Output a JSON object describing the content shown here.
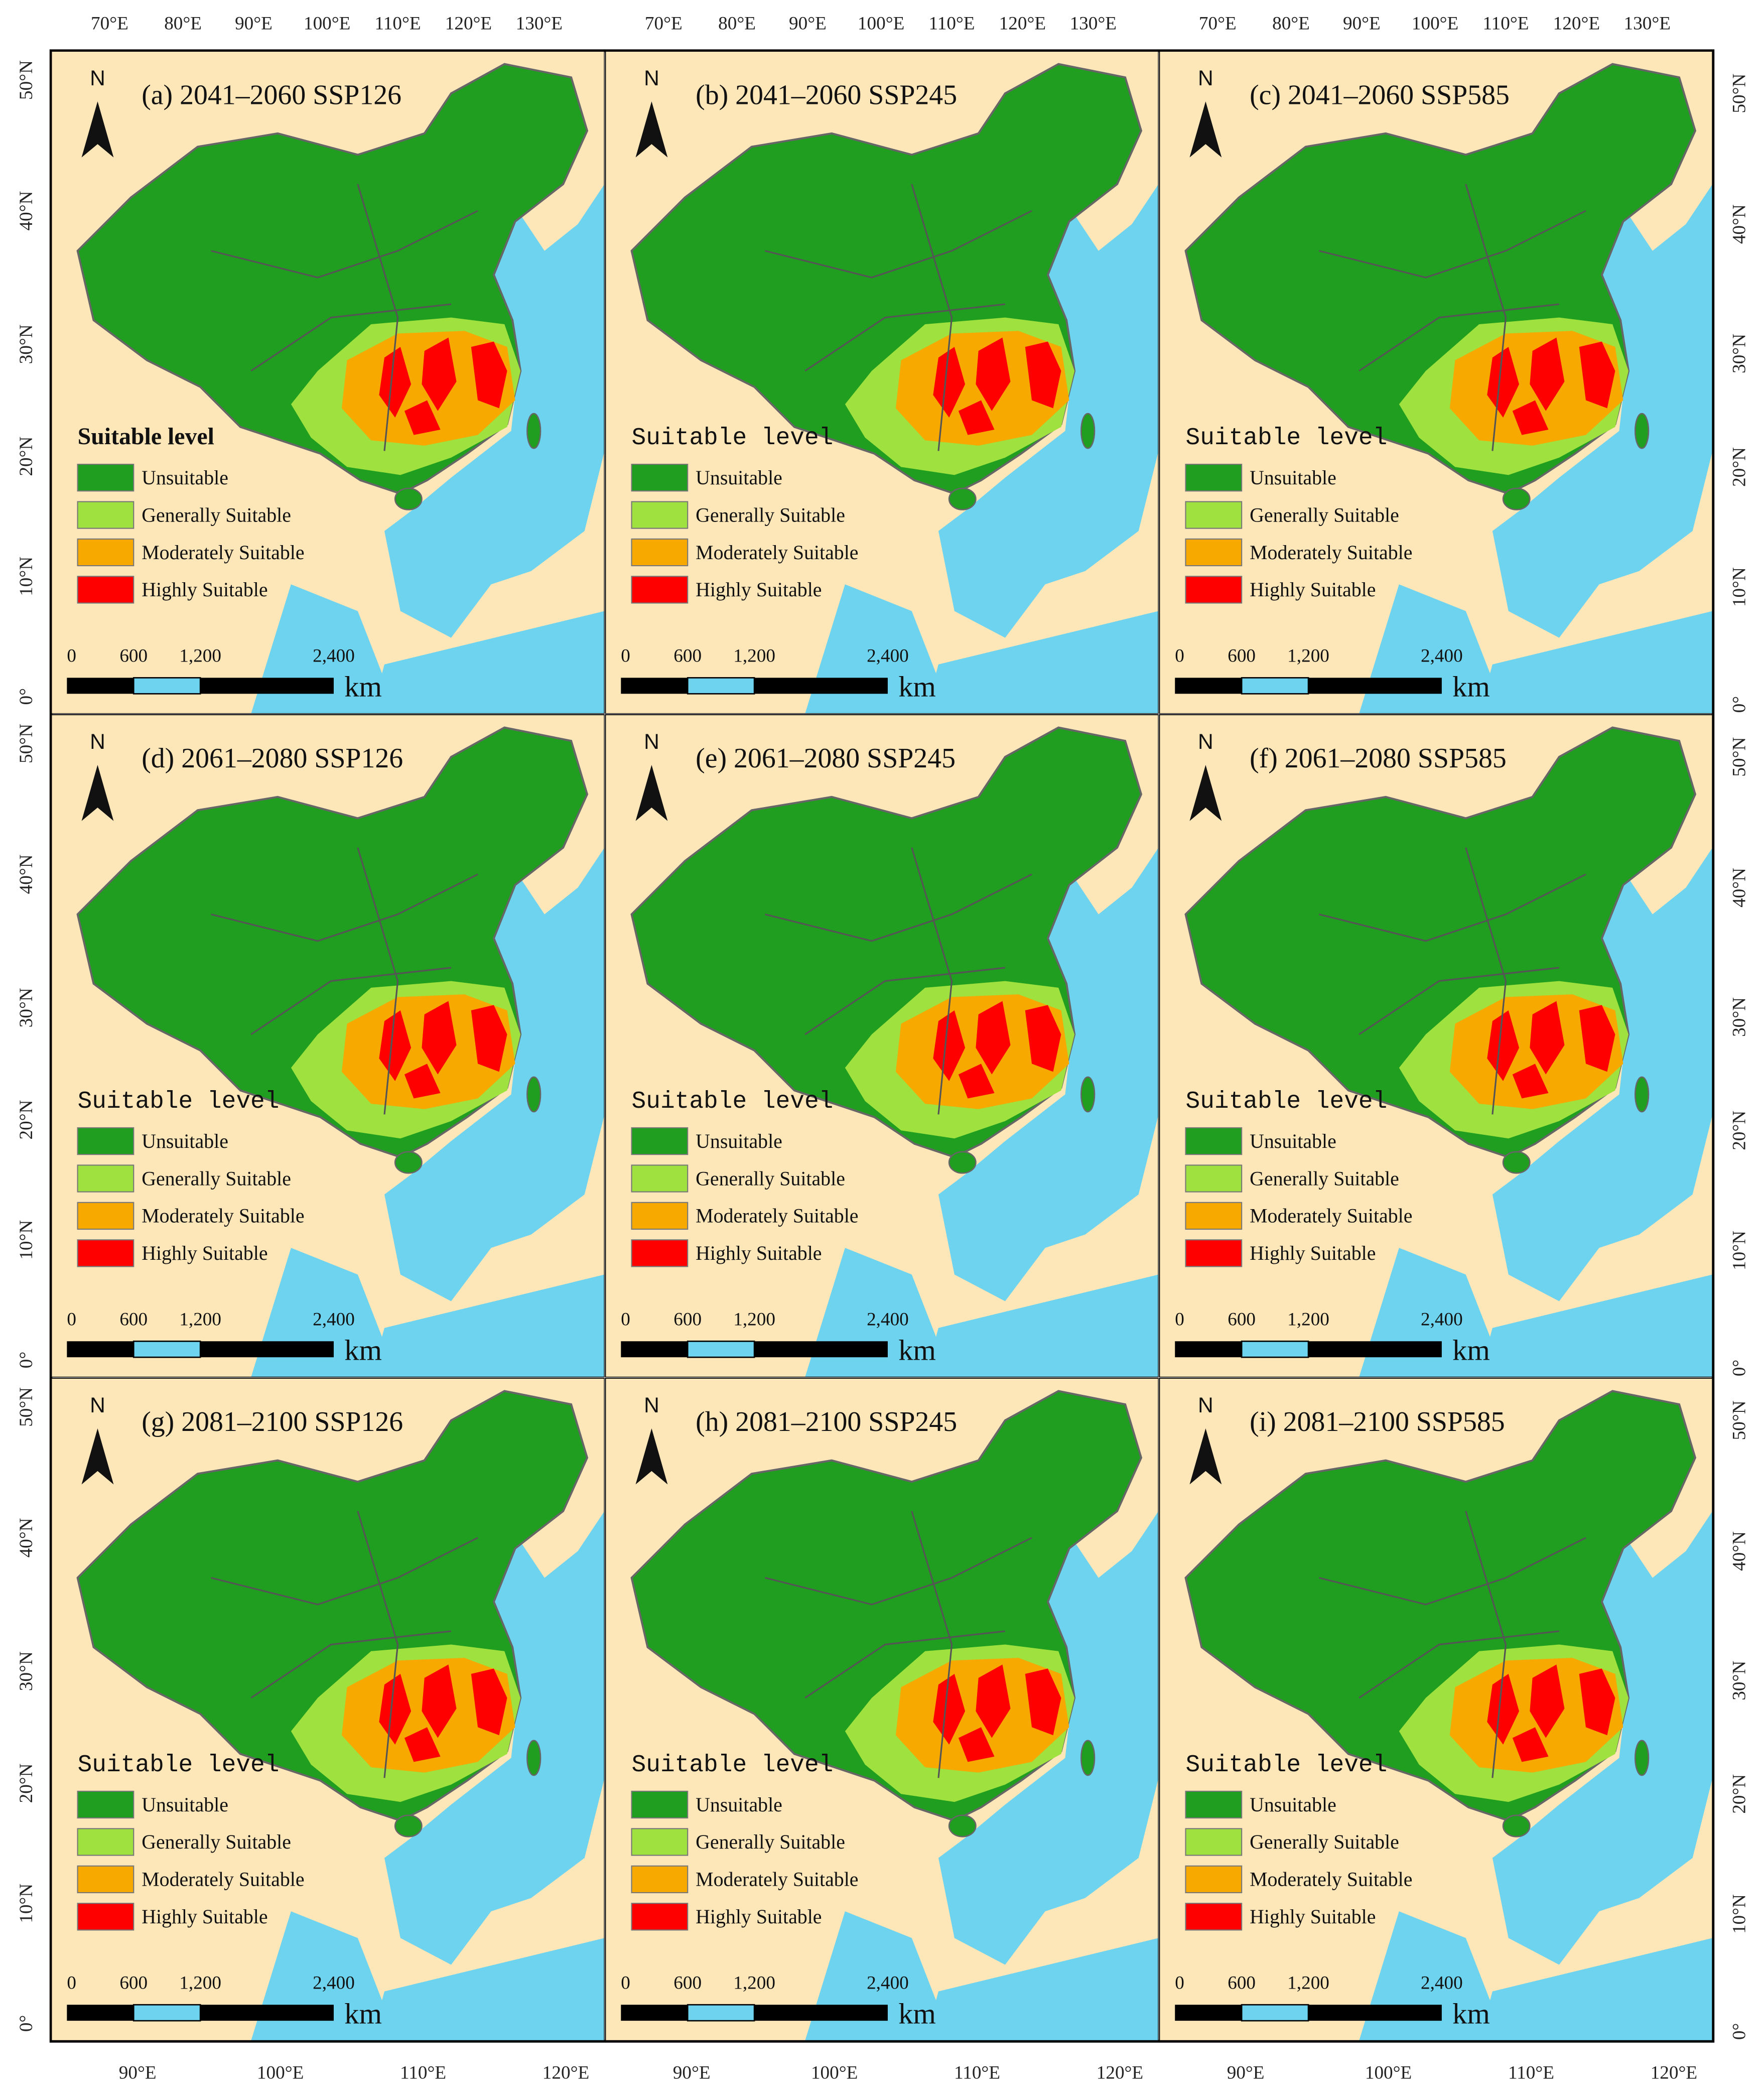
{
  "panels": [
    {
      "title": "(a)  2041–2060 SSP126"
    },
    {
      "title": "(b)  2041–2060 SSP245"
    },
    {
      "title": "(c)  2041–2060 SSP585"
    },
    {
      "title": "(d)  2061–2080 SSP126"
    },
    {
      "title": "(e)  2061–2080 SSP245"
    },
    {
      "title": "(f)  2061–2080 SSP585"
    },
    {
      "title": "(g)  2081–2100 SSP126"
    },
    {
      "title": "(h)  2081–2100 SSP245"
    },
    {
      "title": "(i)  2081–2100 SSP585"
    }
  ],
  "legend": {
    "title": "Suitable level",
    "items": [
      {
        "label": "Unsuitable",
        "color": "#1f9e1f"
      },
      {
        "label": "Generally Suitable",
        "color": "#9fe13e"
      },
      {
        "label": "Moderately Suitable",
        "color": "#f7a900"
      },
      {
        "label": "Highly Suitable",
        "color": "#fe0000"
      }
    ]
  },
  "scale_bar": {
    "labels": [
      "0",
      "600",
      "1,200",
      "2,400"
    ],
    "unit": "km"
  },
  "north_label": "N",
  "axes": {
    "top": [
      "70°E",
      "80°E",
      "90°E",
      "100°E",
      "110°E",
      "120°E",
      "130°E"
    ],
    "bottom": [
      "90°E",
      "100°E",
      "110°E",
      "120°E"
    ],
    "left": [
      "50°N",
      "40°N",
      "30°N",
      "20°N",
      "10°N",
      "0°"
    ],
    "right": [
      "50°N",
      "40°N",
      "30°N",
      "20°N",
      "10°N",
      "0°"
    ]
  }
}
